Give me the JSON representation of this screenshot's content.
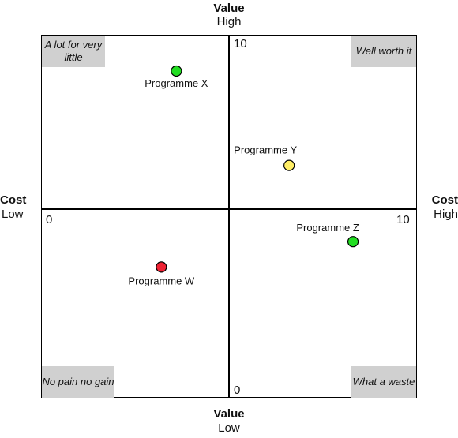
{
  "top_axis": {
    "title": "Value",
    "sub": "High"
  },
  "bottom_axis": {
    "title": "Value",
    "sub": "Low"
  },
  "left_axis": {
    "title": "Cost",
    "sub": "Low"
  },
  "right_axis": {
    "title": "Cost",
    "sub": "High"
  },
  "quadrants": {
    "top_left": "A lot for very little",
    "top_right": "Well worth it",
    "bottom_left": "No pain no gain",
    "bottom_right": "What a waste"
  },
  "ticks": {
    "y_max": "10",
    "y_min": "0",
    "x_min": "0",
    "x_max": "10"
  },
  "chart_data": {
    "type": "scatter",
    "xlim": [
      0,
      10
    ],
    "ylim": [
      0,
      10
    ],
    "points": [
      {
        "label": "Programme X",
        "x": 3.6,
        "y": 9.0,
        "color": "#22dd22"
      },
      {
        "label": "Programme Y",
        "x": 6.6,
        "y": 6.4,
        "color": "#ffee66"
      },
      {
        "label": "Programme Z",
        "x": 8.3,
        "y": 4.3,
        "color": "#22dd22"
      },
      {
        "label": "Programme W",
        "x": 3.2,
        "y": 3.6,
        "color": "#ee2233"
      }
    ]
  }
}
